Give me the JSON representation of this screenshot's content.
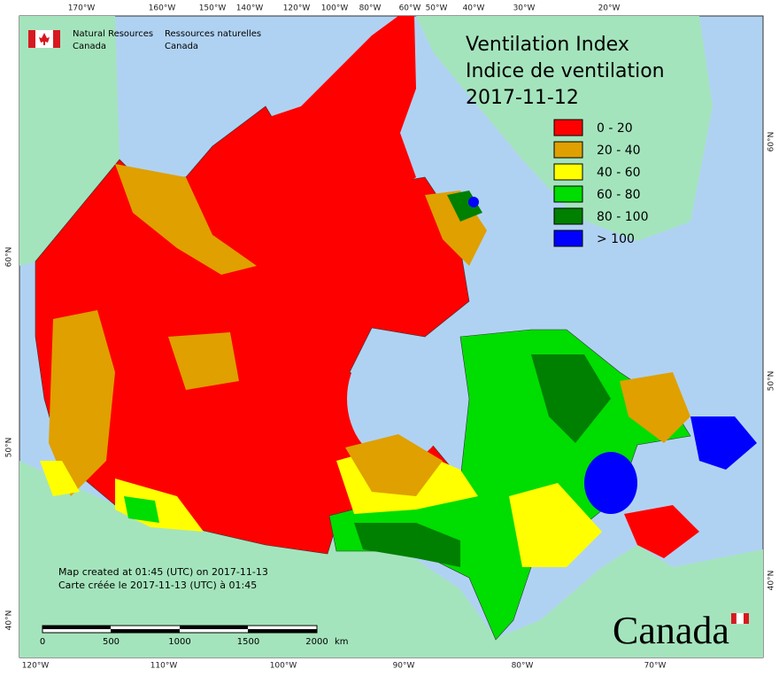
{
  "header": {
    "agency_en": [
      "Natural Resources",
      "Canada"
    ],
    "agency_fr": [
      "Ressources naturelles",
      "Canada"
    ]
  },
  "title": {
    "line1": "Ventilation Index",
    "line2": "Indice de ventilation",
    "date": "2017-11-12"
  },
  "legend": [
    {
      "label": "0 - 20",
      "color": "#ff0000"
    },
    {
      "label": "20 - 40",
      "color": "#dfa000"
    },
    {
      "label": "40 - 60",
      "color": "#ffff00"
    },
    {
      "label": "60 - 80",
      "color": "#00dd00"
    },
    {
      "label": "80 - 100",
      "color": "#008000"
    },
    {
      "label": "> 100",
      "color": "#0000ff"
    }
  ],
  "top_labels": [
    "170°W",
    "160°W",
    "150°W",
    "140°W",
    "120°W",
    "100°W",
    "80°W",
    "60°W",
    "50°W",
    "40°W",
    "30°W",
    "20°W"
  ],
  "bottom_labels": [
    "120°W",
    "110°W",
    "100°W",
    "90°W",
    "80°W",
    "70°W"
  ],
  "left_labels": [
    "60°N",
    "50°N",
    "40°N"
  ],
  "right_labels": [
    "60°N",
    "50°N",
    "40°N"
  ],
  "notes": [
    "Map created at 01:45 (UTC) on 2017-11-13",
    "Carte créée le 2017-11-13 (UTC) à 01:45"
  ],
  "scale": {
    "labels": [
      "0",
      "500",
      "1000",
      "1500",
      "2000"
    ],
    "unit": "km"
  },
  "wordmark": "Canada"
}
